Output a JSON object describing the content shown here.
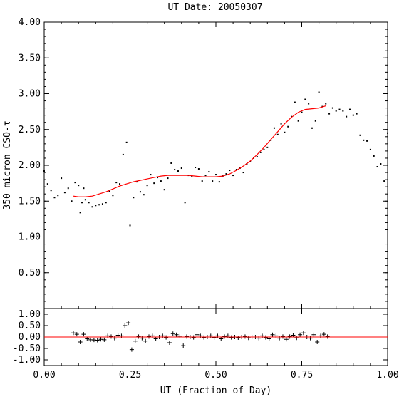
{
  "chart_data": [
    {
      "type": "scatter",
      "panel": "main",
      "title": "UT Date: 20050307",
      "ylabel": "350 micron CSO-τ",
      "xlim": [
        0.0,
        1.0
      ],
      "ylim": [
        0.0,
        4.0
      ],
      "y_ticks": [
        "4.00",
        "3.50",
        "3.00",
        "2.50",
        "2.00",
        "1.50",
        "1.00",
        "0.50"
      ],
      "y_tick_values": [
        4.0,
        3.5,
        3.0,
        2.5,
        2.0,
        1.5,
        1.0,
        0.5
      ],
      "grid": false,
      "points_color": "#000000",
      "fit_color": "#ff0000",
      "points": {
        "x": [
          0.0,
          0.01,
          0.02,
          0.03,
          0.04,
          0.05,
          0.06,
          0.07,
          0.08,
          0.09,
          0.1,
          0.105,
          0.11,
          0.115,
          0.12,
          0.13,
          0.14,
          0.15,
          0.16,
          0.17,
          0.18,
          0.19,
          0.2,
          0.21,
          0.22,
          0.23,
          0.24,
          0.25,
          0.26,
          0.27,
          0.28,
          0.29,
          0.3,
          0.31,
          0.32,
          0.33,
          0.34,
          0.35,
          0.36,
          0.37,
          0.38,
          0.39,
          0.4,
          0.41,
          0.42,
          0.43,
          0.44,
          0.45,
          0.46,
          0.47,
          0.48,
          0.49,
          0.5,
          0.51,
          0.52,
          0.53,
          0.54,
          0.55,
          0.56,
          0.57,
          0.58,
          0.59,
          0.6,
          0.61,
          0.62,
          0.63,
          0.64,
          0.65,
          0.66,
          0.67,
          0.68,
          0.69,
          0.7,
          0.71,
          0.72,
          0.73,
          0.74,
          0.75,
          0.76,
          0.77,
          0.78,
          0.79,
          0.8,
          0.81,
          0.82,
          0.83,
          0.84,
          0.85,
          0.86,
          0.87,
          0.88,
          0.89,
          0.9,
          0.91,
          0.92,
          0.93,
          0.94,
          0.95,
          0.96,
          0.97,
          0.98,
          0.99,
          1.0
        ],
        "y": [
          1.92,
          1.74,
          1.65,
          1.55,
          1.58,
          1.82,
          1.62,
          1.68,
          1.5,
          1.76,
          1.72,
          1.34,
          1.48,
          1.68,
          1.52,
          1.48,
          1.42,
          1.44,
          1.45,
          1.46,
          1.48,
          1.64,
          1.58,
          1.76,
          1.74,
          2.15,
          2.32,
          1.16,
          1.55,
          1.77,
          1.63,
          1.59,
          1.72,
          1.87,
          1.75,
          1.83,
          1.78,
          1.66,
          1.82,
          2.03,
          1.94,
          1.92,
          1.96,
          1.48,
          1.86,
          1.85,
          1.97,
          1.95,
          1.78,
          1.86,
          1.91,
          1.78,
          1.87,
          1.77,
          1.85,
          1.88,
          1.93,
          1.86,
          1.94,
          1.96,
          1.9,
          2.02,
          2.05,
          2.1,
          2.12,
          2.18,
          2.22,
          2.25,
          2.35,
          2.52,
          2.43,
          2.58,
          2.46,
          2.54,
          2.68,
          2.88,
          2.62,
          2.74,
          2.92,
          2.86,
          2.52,
          2.62,
          3.02,
          2.82,
          2.86,
          2.72,
          2.8,
          2.76,
          2.78,
          2.76,
          2.68,
          2.78,
          2.7,
          2.72,
          2.42,
          2.35,
          2.34,
          2.22,
          2.13,
          1.98,
          2.02,
          1.78,
          2.45
        ]
      },
      "fit": {
        "x": [
          0.085,
          0.1,
          0.12,
          0.14,
          0.16,
          0.18,
          0.2,
          0.22,
          0.24,
          0.26,
          0.28,
          0.3,
          0.32,
          0.34,
          0.36,
          0.38,
          0.4,
          0.42,
          0.44,
          0.46,
          0.48,
          0.5,
          0.52,
          0.54,
          0.56,
          0.58,
          0.6,
          0.62,
          0.64,
          0.66,
          0.68,
          0.7,
          0.72,
          0.74,
          0.76,
          0.78,
          0.8,
          0.82
        ],
        "y": [
          1.57,
          1.56,
          1.56,
          1.57,
          1.6,
          1.63,
          1.67,
          1.71,
          1.74,
          1.77,
          1.79,
          1.81,
          1.83,
          1.85,
          1.86,
          1.86,
          1.86,
          1.86,
          1.85,
          1.84,
          1.84,
          1.84,
          1.85,
          1.88,
          1.93,
          1.99,
          2.06,
          2.15,
          2.25,
          2.36,
          2.47,
          2.58,
          2.67,
          2.74,
          2.78,
          2.79,
          2.8,
          2.83
        ]
      }
    },
    {
      "type": "scatter",
      "panel": "residuals",
      "xlabel": "UT (Fraction of Day)",
      "xlim": [
        0.0,
        1.0
      ],
      "ylim": [
        -1.25,
        1.25
      ],
      "x_ticks": [
        "0.00",
        "0.25",
        "0.50",
        "0.75",
        "1.00"
      ],
      "x_tick_values": [
        0.0,
        0.25,
        0.5,
        0.75,
        1.0
      ],
      "y_ticks": [
        "1.00",
        "0.50",
        "0.00",
        "-0.50",
        "-1.00"
      ],
      "y_tick_values": [
        1.0,
        0.5,
        0.0,
        -0.5,
        -1.0
      ],
      "zero_line_color": "#ff0000",
      "points": {
        "x": [
          0.085,
          0.095,
          0.105,
          0.115,
          0.125,
          0.135,
          0.145,
          0.155,
          0.165,
          0.175,
          0.185,
          0.195,
          0.205,
          0.215,
          0.225,
          0.235,
          0.245,
          0.255,
          0.265,
          0.275,
          0.285,
          0.295,
          0.305,
          0.315,
          0.325,
          0.335,
          0.345,
          0.355,
          0.365,
          0.375,
          0.385,
          0.395,
          0.405,
          0.415,
          0.425,
          0.435,
          0.445,
          0.455,
          0.465,
          0.475,
          0.485,
          0.495,
          0.505,
          0.515,
          0.525,
          0.535,
          0.545,
          0.555,
          0.565,
          0.575,
          0.585,
          0.595,
          0.605,
          0.615,
          0.625,
          0.635,
          0.645,
          0.655,
          0.665,
          0.675,
          0.685,
          0.695,
          0.705,
          0.715,
          0.725,
          0.735,
          0.745,
          0.755,
          0.765,
          0.775,
          0.785,
          0.795,
          0.805,
          0.815,
          0.825
        ],
        "y": [
          0.18,
          0.12,
          -0.22,
          0.12,
          -0.08,
          -0.12,
          -0.13,
          -0.14,
          -0.1,
          -0.12,
          0.05,
          0.02,
          -0.05,
          0.08,
          0.05,
          0.5,
          0.62,
          -0.55,
          -0.18,
          0.02,
          -0.05,
          -0.18,
          0.02,
          0.05,
          -0.08,
          0.0,
          0.05,
          -0.02,
          -0.25,
          0.15,
          0.1,
          0.04,
          -0.38,
          0.02,
          0.0,
          -0.02,
          0.1,
          0.05,
          -0.02,
          0.0,
          0.05,
          -0.03,
          0.05,
          -0.08,
          0.02,
          0.05,
          -0.02,
          0.0,
          -0.03,
          0.0,
          0.02,
          -0.04,
          0.0,
          0.0,
          -0.05,
          0.05,
          -0.02,
          -0.08,
          0.1,
          0.05,
          -0.05,
          0.02,
          -0.1,
          0.02,
          0.08,
          -0.04,
          0.1,
          0.18,
          0.0,
          -0.05,
          0.1,
          -0.22,
          0.05,
          0.12,
          0.02
        ]
      }
    }
  ]
}
